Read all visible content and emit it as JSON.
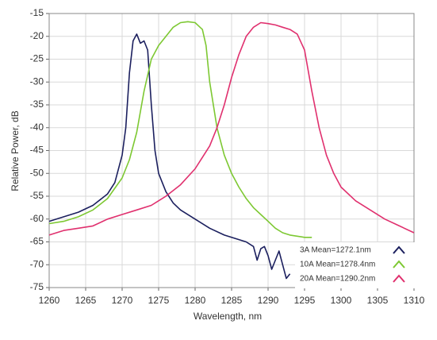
{
  "chart_data": {
    "type": "line",
    "x_label": "Wavelength, nm",
    "y_label": "Relative Power, dB",
    "xlim": [
      1260,
      1310
    ],
    "ylim": [
      -75,
      -15
    ],
    "xticks": [
      1260,
      1265,
      1270,
      1275,
      1280,
      1285,
      1290,
      1295,
      1300,
      1305,
      1310
    ],
    "yticks": [
      -15,
      -20,
      -25,
      -30,
      -35,
      -40,
      -45,
      -50,
      -55,
      -60,
      -65,
      -70,
      -75
    ],
    "grid": true,
    "legend": "lower right",
    "series": [
      {
        "name": "3A Mean=1272.1nm",
        "color": "#1b1f5e",
        "x": [
          1260,
          1262,
          1264,
          1266,
          1268,
          1269,
          1270,
          1270.5,
          1271,
          1271.5,
          1272,
          1272.5,
          1273,
          1273.5,
          1274,
          1274.5,
          1275,
          1276,
          1277,
          1278,
          1280,
          1282,
          1284,
          1286,
          1287,
          1288,
          1288.5,
          1289,
          1289.5,
          1290,
          1290.5,
          1291,
          1291.5,
          1292,
          1292.5,
          1293
        ],
        "values": [
          -60.5,
          -59.5,
          -58.5,
          -57,
          -54.5,
          -52,
          -46,
          -40,
          -28,
          -21,
          -19.5,
          -21.5,
          -21,
          -23,
          -35,
          -45,
          -50,
          -54,
          -56.5,
          -58,
          -60,
          -62,
          -63.5,
          -64.5,
          -65,
          -66,
          -69,
          -66.5,
          -66,
          -68,
          -71,
          -69,
          -67,
          -70,
          -73,
          -72
        ]
      },
      {
        "name": "10A Mean=1278.4nm",
        "color": "#7dc832",
        "x": [
          1260,
          1262,
          1264,
          1266,
          1268,
          1270,
          1271,
          1272,
          1273,
          1274,
          1275,
          1276,
          1277,
          1278,
          1279,
          1280,
          1281,
          1281.5,
          1282,
          1283,
          1284,
          1285,
          1286,
          1287,
          1288,
          1289,
          1290,
          1291,
          1292,
          1293,
          1295,
          1296
        ],
        "values": [
          -61,
          -60.5,
          -59.5,
          -58,
          -55.5,
          -51,
          -47,
          -41,
          -32,
          -25,
          -22,
          -20,
          -18,
          -17,
          -16.8,
          -17,
          -18.5,
          -22,
          -30,
          -40,
          -46,
          -50,
          -53,
          -55.5,
          -57.5,
          -59,
          -60.5,
          -62,
          -63,
          -63.5,
          -64,
          -64
        ]
      },
      {
        "name": "20A Mean=1290.2nm",
        "color": "#e0306e",
        "x": [
          1260,
          1262,
          1264,
          1266,
          1268,
          1270,
          1272,
          1274,
          1276,
          1278,
          1280,
          1282,
          1283,
          1284,
          1285,
          1286,
          1287,
          1288,
          1289,
          1290,
          1291,
          1292,
          1293,
          1294,
          1295,
          1296,
          1297,
          1298,
          1299,
          1300,
          1302,
          1304,
          1306,
          1308,
          1310
        ],
        "values": [
          -63.5,
          -62.5,
          -62,
          -61.5,
          -60,
          -59,
          -58,
          -57,
          -55,
          -52.5,
          -49,
          -44,
          -40,
          -35,
          -29,
          -24,
          -20,
          -18,
          -17,
          -17.2,
          -17.5,
          -18,
          -18.5,
          -19.5,
          -23,
          -32,
          -40,
          -46,
          -50,
          -53,
          -56,
          -58,
          -60,
          -61.5,
          -63
        ]
      }
    ]
  }
}
